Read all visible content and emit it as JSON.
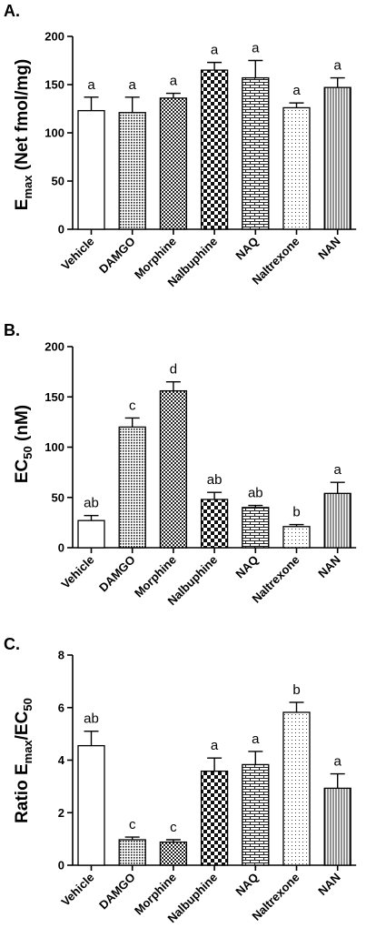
{
  "chart_data": [
    {
      "type": "bar",
      "panel": "A.",
      "ylabel": {
        "main": "E",
        "sub": "max",
        "rest": " (Net fmol/mg)"
      },
      "categories": [
        "Vehicle",
        "DAMGO",
        "Morphine",
        "Nalbuphine",
        "NAQ",
        "Naltrexone",
        "NAN"
      ],
      "values": [
        123,
        121,
        136,
        165,
        157,
        126,
        147
      ],
      "errors": [
        14,
        16,
        5,
        8,
        18,
        5,
        10
      ],
      "labels": [
        "a",
        "a",
        "a",
        "a",
        "a",
        "a",
        "a"
      ],
      "yticks": [
        "0",
        "50",
        "100",
        "150",
        "200"
      ],
      "ylim": [
        0,
        200
      ],
      "patterns": [
        "white",
        "dots-dense",
        "checker-small",
        "checker-large",
        "brick",
        "dots-sparse",
        "vertical-lines"
      ]
    },
    {
      "type": "bar",
      "panel": "B.",
      "ylabel": {
        "main": "EC",
        "sub": "50",
        "rest": " (nM)"
      },
      "categories": [
        "Vehicle",
        "DAMGO",
        "Morphine",
        "Nalbuphine",
        "NAQ",
        "Naltrexone",
        "NAN"
      ],
      "values": [
        27,
        120,
        156,
        48,
        40,
        21,
        54
      ],
      "errors": [
        5,
        9,
        9,
        7,
        2,
        2,
        11
      ],
      "labels": [
        "ab",
        "c",
        "d",
        "ab",
        "ab",
        "b",
        "a"
      ],
      "yticks": [
        "0",
        "50",
        "100",
        "150",
        "200"
      ],
      "ylim": [
        0,
        200
      ],
      "patterns": [
        "white",
        "dots-dense",
        "checker-small",
        "checker-large",
        "brick",
        "dots-sparse",
        "vertical-lines"
      ]
    },
    {
      "type": "bar",
      "panel": "C.",
      "ylabel": {
        "main": "Ratio E",
        "sub": "max",
        "rest": "/EC",
        "sub2": "50"
      },
      "categories": [
        "Vehicle",
        "DAMGO",
        "Morphine",
        "Nalbuphine",
        "NAQ",
        "Naltrexone",
        "NAN"
      ],
      "values": [
        4.55,
        0.97,
        0.88,
        3.58,
        3.83,
        5.82,
        2.93
      ],
      "errors": [
        0.55,
        0.1,
        0.09,
        0.5,
        0.5,
        0.38,
        0.55
      ],
      "labels": [
        "ab",
        "c",
        "c",
        "a",
        "a",
        "b",
        "a"
      ],
      "yticks": [
        "0",
        "2",
        "4",
        "6",
        "8"
      ],
      "ylim": [
        0,
        8
      ],
      "patterns": [
        "white",
        "dots-dense",
        "checker-small",
        "checker-large",
        "brick",
        "dots-sparse",
        "vertical-lines"
      ]
    }
  ]
}
